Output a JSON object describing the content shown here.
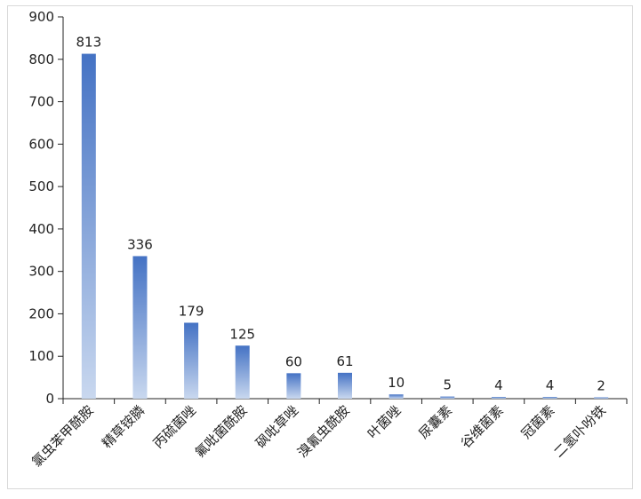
{
  "chart_data": {
    "type": "bar",
    "title": "",
    "xlabel": "",
    "ylabel": "",
    "categories": [
      "氯虫苯甲酰胺",
      "精草铵膦",
      "丙硫菌唑",
      "氟吡菌酰胺",
      "砜吡草唑",
      "溴氰虫酰胺",
      "叶菌唑",
      "尿囊素",
      "谷维菌素",
      "冠菌素",
      "二氢卟吩铁"
    ],
    "values": [
      813,
      336,
      179,
      125,
      60,
      61,
      10,
      5,
      4,
      4,
      2
    ],
    "ylim": [
      0,
      900
    ],
    "yticks": [
      0,
      100,
      200,
      300,
      400,
      500,
      600,
      700,
      800,
      900
    ],
    "grid": false,
    "legend": "none",
    "colors": {
      "bar_top": "#4472c4",
      "bar_bottom": "#c9d8ef",
      "axis": "#222222"
    }
  }
}
